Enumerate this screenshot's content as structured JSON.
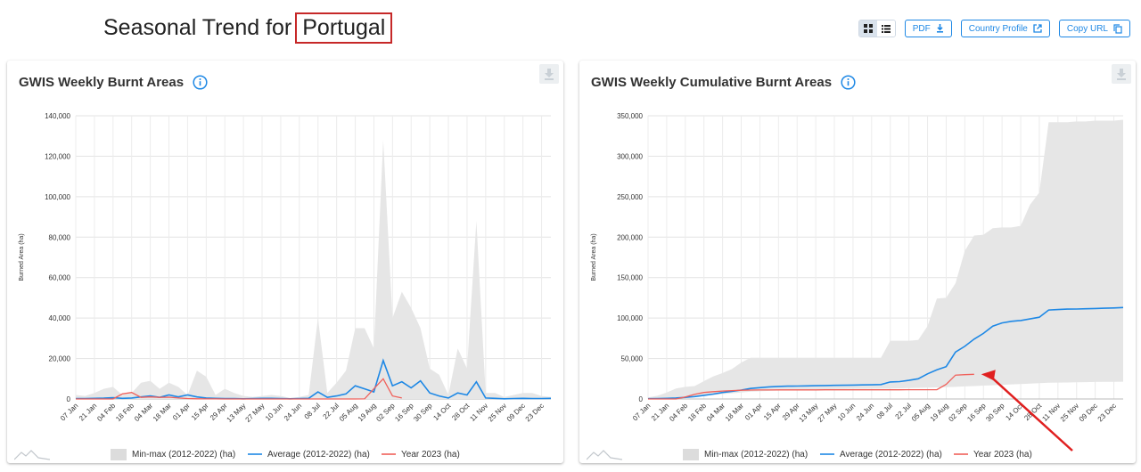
{
  "header": {
    "title_prefix": "Seasonal Trend for",
    "country": "Portugal",
    "buttons": {
      "pdf": "PDF",
      "profile": "Country Profile",
      "copy": "Copy URL"
    }
  },
  "legend": {
    "minmax": "Min-max (2012-2022) (ha)",
    "average": "Average (2012-2022) (ha)",
    "year": "Year 2023 (ha)"
  },
  "colors": {
    "band": "#e6e6e6",
    "average": "#1e88e5",
    "year": "#f0605a",
    "accent": "#1e88e5",
    "highlight_box": "#c62828",
    "arrow": "#e02020"
  },
  "chart_data": [
    {
      "type": "area",
      "title": "GWIS Weekly Burnt Areas",
      "xlabel": "",
      "ylabel": "Burned Area (ha)",
      "ylim": [
        0,
        140000
      ],
      "yticks": [
        0,
        20000,
        40000,
        60000,
        80000,
        100000,
        120000,
        140000
      ],
      "ytick_labels": [
        "0",
        "20,000",
        "40,000",
        "60,000",
        "80,000",
        "100,000",
        "120,000",
        "140,000"
      ],
      "x_tick_labels": [
        "07 Jan",
        "21 Jan",
        "04 Feb",
        "18 Feb",
        "04 Mar",
        "18 Mar",
        "01 Apr",
        "15 Apr",
        "29 Apr",
        "13 May",
        "27 May",
        "10 Jun",
        "24 Jun",
        "08 Jul",
        "22 Jul",
        "05 Aug",
        "19 Aug",
        "02 Sep",
        "16 Sep",
        "30 Sep",
        "14 Oct",
        "28 Oct",
        "11 Nov",
        "25 Nov",
        "09 Dec",
        "23 Dec"
      ],
      "grid": true,
      "legend_position": "bottom",
      "series": [
        {
          "name": "Min-max (2012-2022) (ha)",
          "kind": "band",
          "lower": [
            0,
            0,
            0,
            0,
            0,
            0,
            0,
            0,
            0,
            0,
            0,
            0,
            0,
            0,
            0,
            0,
            0,
            0,
            0,
            0,
            0,
            0,
            0,
            0,
            0,
            0,
            0,
            0,
            0,
            0,
            0,
            0,
            0,
            0,
            0,
            0,
            0,
            0,
            0,
            0,
            0,
            0,
            0,
            0,
            0,
            0,
            0,
            0,
            0,
            0,
            0,
            0
          ],
          "upper": [
            2000,
            1500,
            3000,
            5000,
            6000,
            2000,
            3000,
            8000,
            9000,
            5000,
            8000,
            6000,
            2000,
            14000,
            11000,
            2000,
            5000,
            3000,
            1500,
            1000,
            1500,
            2000,
            1500,
            500,
            1000,
            2000,
            40000,
            3000,
            8000,
            14000,
            35000,
            35000,
            25000,
            128000,
            40000,
            53000,
            45000,
            35000,
            15000,
            12000,
            2000,
            25000,
            15000,
            88000,
            3000,
            3000,
            1000,
            2000,
            3000,
            3000,
            1500,
            1000
          ]
        },
        {
          "name": "Average (2012-2022) (ha)",
          "kind": "line",
          "values": [
            200,
            200,
            300,
            400,
            600,
            300,
            500,
            1000,
            1500,
            800,
            2000,
            1000,
            2000,
            1000,
            500,
            300,
            200,
            200,
            100,
            200,
            300,
            300,
            200,
            100,
            200,
            300,
            3500,
            800,
            1500,
            2500,
            6500,
            5000,
            3500,
            19000,
            6500,
            8500,
            5500,
            9000,
            3000,
            1500,
            500,
            3000,
            2000,
            8500,
            500,
            300,
            100,
            200,
            300,
            200,
            200,
            300
          ]
        },
        {
          "name": "Year 2023 (ha)",
          "kind": "line",
          "values": [
            0,
            0,
            0,
            0,
            0,
            2500,
            3200,
            800,
            1000,
            800,
            900,
            500,
            200,
            100,
            50,
            30,
            20,
            20,
            10,
            10,
            10,
            20,
            20,
            10,
            10,
            10,
            10,
            10,
            10,
            10,
            20,
            50,
            5000,
            10000,
            1500,
            500,
            null,
            null,
            null,
            null,
            null,
            null,
            null,
            null,
            null,
            null,
            null,
            null,
            null,
            null,
            null,
            null
          ]
        }
      ]
    },
    {
      "type": "area",
      "title": "GWIS Weekly Cumulative Burnt Areas",
      "xlabel": "",
      "ylabel": "Burned Area (ha)",
      "ylim": [
        0,
        350000
      ],
      "yticks": [
        0,
        50000,
        100000,
        150000,
        200000,
        250000,
        300000,
        350000
      ],
      "ytick_labels": [
        "0",
        "50,000",
        "100,000",
        "150,000",
        "200,000",
        "250,000",
        "300,000",
        "350,000"
      ],
      "x_tick_labels": [
        "07 Jan",
        "21 Jan",
        "04 Feb",
        "18 Feb",
        "04 Mar",
        "18 Mar",
        "01 Apr",
        "15 Apr",
        "29 Apr",
        "13 May",
        "27 May",
        "10 Jun",
        "24 Jun",
        "08 Jul",
        "22 Jul",
        "05 Aug",
        "19 Aug",
        "02 Sep",
        "16 Sep",
        "30 Sep",
        "14 Oct",
        "28 Oct",
        "11 Nov",
        "25 Nov",
        "09 Dec",
        "23 Dec"
      ],
      "grid": true,
      "legend_position": "bottom",
      "series": [
        {
          "name": "Min-max (2012-2022) (ha)",
          "kind": "band",
          "lower": [
            0,
            200,
            500,
            1000,
            2000,
            3000,
            4000,
            5000,
            6000,
            7000,
            8000,
            9000,
            9500,
            10000,
            10500,
            11000,
            11200,
            11500,
            11800,
            12000,
            12200,
            12300,
            12500,
            12600,
            12700,
            12800,
            13000,
            13200,
            13500,
            13800,
            14000,
            14300,
            14600,
            15000,
            15500,
            16000,
            16500,
            17000,
            17500,
            18000,
            18500,
            19000,
            19500,
            20000,
            20200,
            20400,
            20600,
            20800,
            21000,
            21100,
            21200,
            21300
          ],
          "upper": [
            2000,
            4000,
            8000,
            13000,
            15000,
            16000,
            22000,
            28000,
            32000,
            37000,
            45000,
            51000,
            51000,
            51000,
            51000,
            51000,
            51000,
            51000,
            51000,
            51000,
            51000,
            51000,
            51000,
            51000,
            51000,
            51000,
            72000,
            72000,
            72000,
            73000,
            90000,
            124000,
            125000,
            143000,
            183000,
            202000,
            203000,
            211000,
            212000,
            212000,
            214000,
            240000,
            255000,
            342000,
            342000,
            342000,
            343000,
            343000,
            344000,
            344000,
            344000,
            345000
          ]
        },
        {
          "name": "Average (2012-2022) (ha)",
          "kind": "line",
          "values": [
            300,
            500,
            800,
            1200,
            2000,
            3000,
            4500,
            6000,
            8000,
            9500,
            11000,
            13000,
            14000,
            15000,
            15500,
            15800,
            16000,
            16200,
            16400,
            16600,
            16800,
            17000,
            17200,
            17400,
            17500,
            17800,
            21000,
            21500,
            23000,
            25000,
            31000,
            36000,
            40000,
            58000,
            65000,
            74000,
            81000,
            90000,
            94000,
            96000,
            97000,
            99000,
            101000,
            110000,
            110500,
            111000,
            111200,
            111500,
            111800,
            112200,
            112500,
            113000
          ]
        },
        {
          "name": "Year 2023 (ha)",
          "kind": "line",
          "values": [
            0,
            0,
            0,
            0,
            2500,
            5700,
            8000,
            9000,
            9800,
            10400,
            10800,
            11000,
            11100,
            11150,
            11200,
            11230,
            11250,
            11270,
            11280,
            11290,
            11300,
            11320,
            11340,
            11350,
            11360,
            11370,
            11380,
            11390,
            11400,
            11410,
            11430,
            11480,
            18000,
            29500,
            30000,
            30500,
            null,
            null,
            null,
            null,
            null,
            null,
            null,
            null,
            null,
            null,
            null,
            null,
            null,
            null,
            null,
            null
          ]
        }
      ]
    }
  ]
}
